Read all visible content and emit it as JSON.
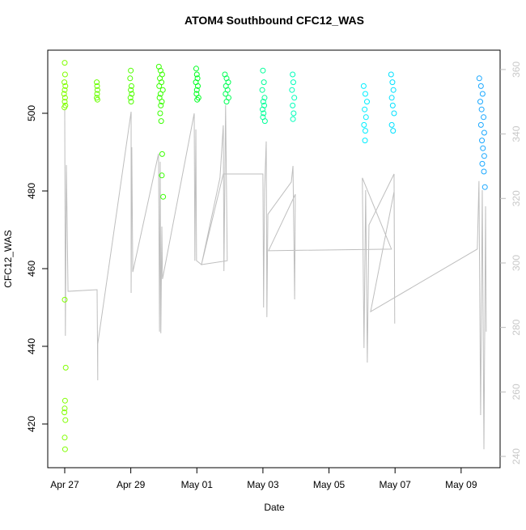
{
  "chart_data": {
    "type": "scatter",
    "title": "ATOM4 Southbound CFC12_WAS",
    "xlabel": "Date",
    "ylabel": "CFC12_WAS",
    "xlim": [
      -0.514,
      13.18
    ],
    "ylim": [
      408.75,
      516.25
    ],
    "y2lim": [
      236.5,
      366
    ],
    "xticks": [
      {
        "value": 0,
        "label": "Apr 27"
      },
      {
        "value": 2,
        "label": "Apr 29"
      },
      {
        "value": 4,
        "label": "May 01"
      },
      {
        "value": 6,
        "label": "May 03"
      },
      {
        "value": 8,
        "label": "May 05"
      },
      {
        "value": 10,
        "label": "May 07"
      },
      {
        "value": 12,
        "label": "May 09"
      }
    ],
    "yticks": [
      420,
      440,
      460,
      480,
      500
    ],
    "y2ticks": [
      240,
      260,
      280,
      300,
      320,
      340,
      360
    ],
    "series": [
      {
        "color": "#80ff00",
        "x": [
          0.0,
          0.01,
          -0.01,
          0.02,
          0.0,
          -0.02,
          0.01,
          0.0,
          0.02,
          -0.01,
          0.0,
          0.03,
          0.01,
          0.0,
          -0.01,
          0.02,
          0.0,
          0.01
        ],
        "values": [
          513,
          510,
          508,
          507,
          506,
          505,
          504,
          503,
          502,
          501.5,
          452,
          434.5,
          426,
          424,
          423,
          421,
          416.5,
          413.5
        ]
      },
      {
        "color": "#6aff00",
        "x": [
          0.97,
          0.98,
          0.99,
          0.98,
          0.97,
          0.99
        ],
        "values": [
          508,
          507,
          506,
          505,
          504,
          503.5
        ]
      },
      {
        "color": "#50ff00",
        "x": [
          2.0,
          1.98,
          2.02,
          2.0,
          2.03,
          1.99,
          2.01
        ],
        "values": [
          511,
          509,
          507,
          506,
          505,
          504,
          503
        ]
      },
      {
        "color": "#38ff00",
        "x": [
          2.85,
          2.9,
          2.95,
          2.88,
          2.93,
          2.86,
          2.97,
          2.9,
          2.87,
          2.94,
          2.91,
          2.89,
          2.92,
          2.95,
          2.94,
          2.98
        ],
        "values": [
          512,
          511,
          510,
          509,
          508,
          507,
          506,
          505,
          504,
          503,
          502,
          500,
          498,
          489.5,
          484,
          478.5
        ]
      },
      {
        "color": "#00ff22",
        "x": [
          3.98,
          4.0,
          4.02,
          3.97,
          4.03,
          4.0,
          3.99,
          4.05,
          4.01
        ],
        "values": [
          511.5,
          510,
          509,
          508,
          507,
          506,
          505,
          504,
          503.5
        ]
      },
      {
        "color": "#00ff55",
        "x": [
          4.85,
          4.9,
          4.95,
          4.88,
          4.93,
          4.87,
          4.96,
          4.9
        ],
        "values": [
          510,
          509,
          508,
          507,
          506,
          505,
          504,
          503
        ]
      },
      {
        "color": "#00ff99",
        "x": [
          6.0,
          6.03,
          5.98,
          6.05,
          6.01,
          6.04,
          5.99,
          6.02,
          6.0,
          6.06
        ],
        "values": [
          511,
          508,
          506,
          504,
          503,
          502,
          501,
          500,
          499,
          498
        ]
      },
      {
        "color": "#00ffbb",
        "x": [
          6.9,
          6.92,
          6.88,
          6.95,
          6.9,
          6.93,
          6.91
        ],
        "values": [
          510,
          508,
          506,
          504,
          502,
          500,
          498.5
        ]
      },
      {
        "color": "#00eeff",
        "x": [
          9.05,
          9.1,
          9.15,
          9.08,
          9.12,
          9.06,
          9.1,
          9.09
        ],
        "values": [
          507,
          505,
          503,
          501,
          499,
          497,
          495.5,
          493
        ]
      },
      {
        "color": "#00e0ff",
        "x": [
          9.88,
          9.92,
          9.95,
          9.9,
          9.93,
          9.97,
          9.9,
          9.94
        ],
        "values": [
          510,
          508,
          506,
          504,
          502,
          500,
          497,
          495.5
        ]
      },
      {
        "color": "#1aa8ff",
        "x": [
          12.55,
          12.6,
          12.65,
          12.58,
          12.62,
          12.68,
          12.6,
          12.7,
          12.63,
          12.66,
          12.7,
          12.64,
          12.69,
          12.72
        ],
        "values": [
          509,
          507,
          505,
          503,
          501,
          499,
          497,
          495,
          493,
          491,
          489,
          487,
          485,
          481
        ]
      },
      {
        "type": "line",
        "axis": "y2",
        "color": "#bebebe",
        "x": [
          0,
          0.02,
          0.05,
          0.1,
          0.98,
          1.0,
          1.0,
          2.01,
          2.01,
          2.03,
          2.06,
          2.84,
          2.87,
          2.89,
          2.91,
          2.94,
          2.96,
          3.92,
          3.94,
          3.97,
          3.99,
          4.14,
          4.7,
          4.8,
          4.82,
          4.87,
          4.92,
          4.14,
          4.8,
          6.0,
          6.02,
          6.05,
          6.1,
          6.12,
          6.15,
          6.86,
          6.91,
          6.96,
          6.98,
          6.17,
          9.89,
          9.01,
          9.06,
          9.11,
          9.16,
          9.21,
          9.97,
          9.99,
          9.97,
          9.26,
          12.49,
          12.54,
          12.59,
          12.64,
          12.69,
          12.74,
          12.76
        ],
        "values": [
          347.7,
          277.4,
          330.4,
          291.2,
          291.7,
          263.6,
          274.9,
          346.9,
          290.7,
          335.9,
          297.2,
          333.9,
          278.7,
          331.4,
          278.2,
          311.3,
          295.0,
          346.4,
          300.7,
          341.4,
          300.7,
          299.5,
          326.4,
          342.7,
          297.5,
          349.0,
          300.7,
          299.5,
          327.6,
          327.6,
          286.2,
          322.6,
          337.7,
          283.2,
          315.1,
          325.1,
          330.1,
          288.7,
          321.3,
          303.8,
          304.3,
          326.4,
          273.6,
          322.6,
          269.1,
          311.8,
          327.6,
          281.2,
          322.1,
          284.9,
          304.3,
          325.4,
          252.8,
          322.6,
          242.2,
          317.6,
          278.7
        ]
      }
    ]
  }
}
